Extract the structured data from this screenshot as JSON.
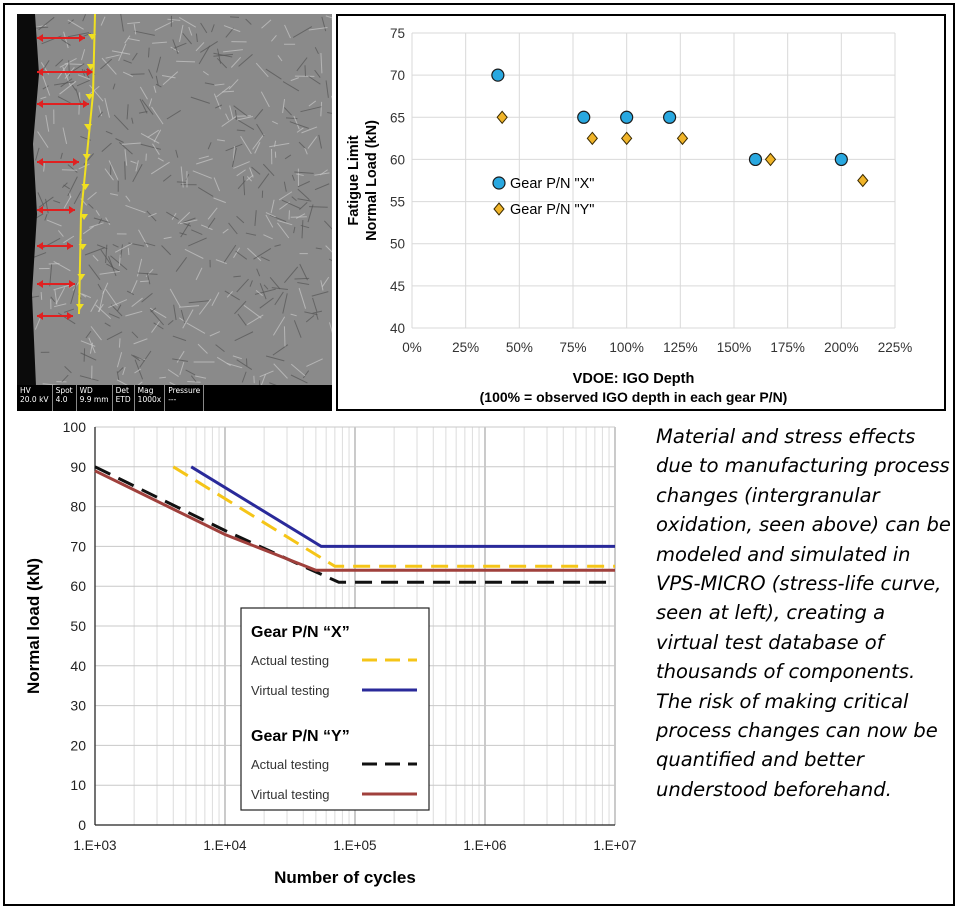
{
  "micrograph": {
    "databar": [
      {
        "label": "HV",
        "value": "20.0 kV"
      },
      {
        "label": "Spot",
        "value": "4.0"
      },
      {
        "label": "WD",
        "value": "9.9 mm"
      },
      {
        "label": "Det",
        "value": "ETD"
      },
      {
        "label": "Mag",
        "value": "1000x"
      },
      {
        "label": "Pressure",
        "value": "---"
      }
    ]
  },
  "caption": "Material and stress effects due to manufacturing process changes (intergranular oxidation, seen above) can be modeled and simulated in VPS-MICRO (stress-life curve, seen at left), creating a virtual test database of thousands of components. The risk of making critical process changes can now be quantified and better understood beforehand.",
  "colors": {
    "x_marker": "#29a8e0",
    "y_marker": "#f0b429",
    "x_actual": "#f5c518",
    "x_virtual": "#2a2a9a",
    "y_actual": "#111111",
    "y_virtual": "#a0403c"
  },
  "chart_data": [
    {
      "type": "scatter",
      "title": "",
      "xlabel": "VDOE: IGO Depth",
      "xlabel2": "(100% = observed IGO depth in each gear P/N)",
      "ylabel": "Fatigue Limit",
      "ylabel2": "Normal Load (kN)",
      "xlim": [
        0,
        225
      ],
      "ylim": [
        40,
        75
      ],
      "x_ticks": [
        "0%",
        "25%",
        "50%",
        "75%",
        "100%",
        "125%",
        "150%",
        "175%",
        "200%",
        "225%"
      ],
      "y_ticks": [
        "40",
        "45",
        "50",
        "55",
        "60",
        "65",
        "70",
        "75"
      ],
      "grid": true,
      "legend": "center-left",
      "series": [
        {
          "name": "Gear P/N \"X\"",
          "marker": "circle",
          "x": [
            40,
            80,
            100,
            120,
            160,
            200
          ],
          "y": [
            70,
            65,
            65,
            65,
            60,
            60
          ]
        },
        {
          "name": "Gear P/N \"Y\"",
          "marker": "diamond",
          "x": [
            42,
            84,
            100,
            126,
            167,
            210
          ],
          "y": [
            65,
            62.5,
            62.5,
            62.5,
            60,
            57.5
          ]
        }
      ]
    },
    {
      "type": "line",
      "title": "",
      "xlabel": "Number of cycles",
      "ylabel": "Normal load (kN)",
      "x_scale": "log",
      "xlim": [
        1000,
        10000000
      ],
      "ylim": [
        0,
        100
      ],
      "x_ticks": [
        "1.E+03",
        "1.E+04",
        "1.E+05",
        "1.E+06",
        "1.E+07"
      ],
      "y_ticks": [
        "0",
        "10",
        "20",
        "30",
        "40",
        "50",
        "60",
        "70",
        "80",
        "90",
        "100"
      ],
      "grid": true,
      "legend": "center",
      "groups": [
        {
          "title": "Gear P/N “X”",
          "series": [
            {
              "name": "Actual testing",
              "style": "dashed",
              "color_key": "x_actual",
              "x": [
                4000,
                70000,
                10000000
              ],
              "y": [
                90,
                65,
                65
              ]
            },
            {
              "name": "Virtual testing",
              "style": "solid",
              "color_key": "x_virtual",
              "x": [
                5500,
                55000,
                10000000
              ],
              "y": [
                90,
                70,
                70
              ]
            }
          ]
        },
        {
          "title": "Gear P/N “Y”",
          "series": [
            {
              "name": "Actual testing",
              "style": "dashed",
              "color_key": "y_actual",
              "x": [
                1000,
                10000,
                40000,
                75000,
                10000000
              ],
              "y": [
                90,
                74,
                65,
                61,
                61
              ]
            },
            {
              "name": "Virtual testing",
              "style": "solid",
              "color_key": "y_virtual",
              "x": [
                1000,
                10000,
                50000,
                10000000
              ],
              "y": [
                89,
                73,
                64,
                64
              ]
            }
          ]
        }
      ]
    }
  ]
}
